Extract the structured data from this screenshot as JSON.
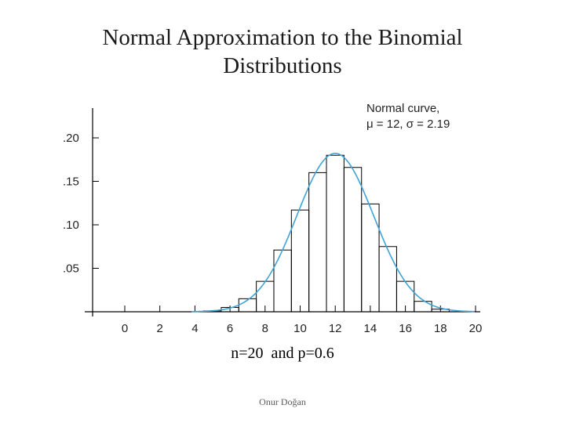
{
  "slide": {
    "title_line1": "Normal Approximation to the Binomial",
    "title_line2": "Distributions",
    "caption": "n=20  and p=0.6",
    "footer": "Onur Doğan"
  },
  "chart_data": {
    "type": "bar",
    "title": "",
    "xlabel": "",
    "ylabel": "",
    "xlim": [
      -2,
      20
    ],
    "ylim": [
      0,
      0.2
    ],
    "x_ticks": [
      0,
      2,
      4,
      6,
      8,
      10,
      12,
      14,
      16,
      18,
      20
    ],
    "y_ticks": [
      0.05,
      0.1,
      0.15,
      0.2
    ],
    "y_tick_labels": [
      ".05",
      ".10",
      ".15",
      ".20"
    ],
    "bars": [
      {
        "x": 5,
        "p": 0.001
      },
      {
        "x": 6,
        "p": 0.005
      },
      {
        "x": 7,
        "p": 0.015
      },
      {
        "x": 8,
        "p": 0.035
      },
      {
        "x": 9,
        "p": 0.071
      },
      {
        "x": 10,
        "p": 0.117
      },
      {
        "x": 11,
        "p": 0.16
      },
      {
        "x": 12,
        "p": 0.18
      },
      {
        "x": 13,
        "p": 0.166
      },
      {
        "x": 14,
        "p": 0.124
      },
      {
        "x": 15,
        "p": 0.075
      },
      {
        "x": 16,
        "p": 0.035
      },
      {
        "x": 17,
        "p": 0.012
      },
      {
        "x": 18,
        "p": 0.003
      }
    ],
    "normal_curve": {
      "mu": 12,
      "sigma": 2.19
    },
    "legend": {
      "line1": "Normal curve,",
      "line2": "μ = 12, σ = 2.19",
      "placement": "top-right"
    },
    "colors": {
      "curve": "#3fa3d6",
      "bars": "#000000"
    }
  }
}
